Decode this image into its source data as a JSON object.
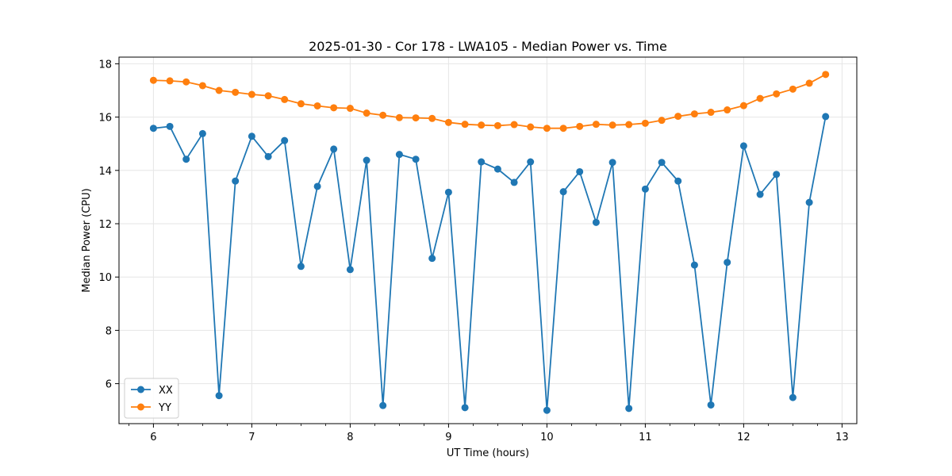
{
  "chart_data": {
    "type": "line",
    "title": "2025-01-30 - Cor 178 - LWA105 - Median Power vs. Time",
    "xlabel": "UT Time (hours)",
    "ylabel": "Median Power (CPU)",
    "xlim": [
      5.65,
      13.15
    ],
    "ylim": [
      4.5,
      18.25
    ],
    "xticks": [
      6,
      7,
      8,
      9,
      10,
      11,
      12,
      13
    ],
    "yticks": [
      6,
      8,
      10,
      12,
      14,
      16,
      18
    ],
    "grid": true,
    "legend_position": "lower-left",
    "x": [
      6.0,
      6.167,
      6.333,
      6.5,
      6.667,
      6.833,
      7.0,
      7.167,
      7.333,
      7.5,
      7.667,
      7.833,
      8.0,
      8.167,
      8.333,
      8.5,
      8.667,
      8.833,
      9.0,
      9.167,
      9.333,
      9.5,
      9.667,
      9.833,
      10.0,
      10.167,
      10.333,
      10.5,
      10.667,
      10.833,
      11.0,
      11.167,
      11.333,
      11.5,
      11.667,
      11.833,
      12.0,
      12.167,
      12.333,
      12.5,
      12.667,
      12.833
    ],
    "series": [
      {
        "name": "XX",
        "color": "#1f77b4",
        "values": [
          15.58,
          15.65,
          14.42,
          15.38,
          5.55,
          13.6,
          15.28,
          14.52,
          15.12,
          10.4,
          13.4,
          14.8,
          10.28,
          14.38,
          5.18,
          14.6,
          14.42,
          10.7,
          13.18,
          5.1,
          14.32,
          14.05,
          13.55,
          14.32,
          5.0,
          13.2,
          13.95,
          12.05,
          14.3,
          5.07,
          13.3,
          14.3,
          13.6,
          10.45,
          5.2,
          10.55,
          14.92,
          13.1,
          13.85,
          5.48,
          12.8,
          16.02
        ]
      },
      {
        "name": "YY",
        "color": "#ff7f0e",
        "values": [
          17.38,
          17.36,
          17.32,
          17.18,
          17.0,
          16.93,
          16.85,
          16.8,
          16.66,
          16.5,
          16.42,
          16.35,
          16.33,
          16.15,
          16.07,
          15.98,
          15.97,
          15.95,
          15.8,
          15.73,
          15.7,
          15.68,
          15.72,
          15.63,
          15.58,
          15.58,
          15.65,
          15.73,
          15.7,
          15.72,
          15.77,
          15.88,
          16.03,
          16.12,
          16.18,
          16.27,
          16.43,
          16.7,
          16.87,
          17.05,
          17.27,
          17.6
        ]
      }
    ]
  }
}
